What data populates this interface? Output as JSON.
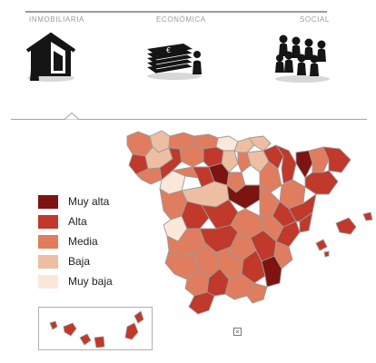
{
  "tabs": [
    {
      "label": "INMOBILIARIA",
      "icon": "house-person-icon"
    },
    {
      "label": "ECONÓMICA",
      "icon": "money-stack-icon"
    },
    {
      "label": "SOCIAL",
      "icon": "people-group-icon"
    }
  ],
  "selected_tab": 0,
  "legend": {
    "items": [
      {
        "label": "Muy alta",
        "color": "#7d1410"
      },
      {
        "label": "Alta",
        "color": "#c0392b"
      },
      {
        "label": "Media",
        "color": "#e07d5f"
      },
      {
        "label": "Baja",
        "color": "#eebea2"
      },
      {
        "label": "Muy baja",
        "color": "#fbe8da"
      }
    ]
  },
  "colors": {
    "border": "#9a9a9a",
    "outline": "#ffffff"
  }
}
